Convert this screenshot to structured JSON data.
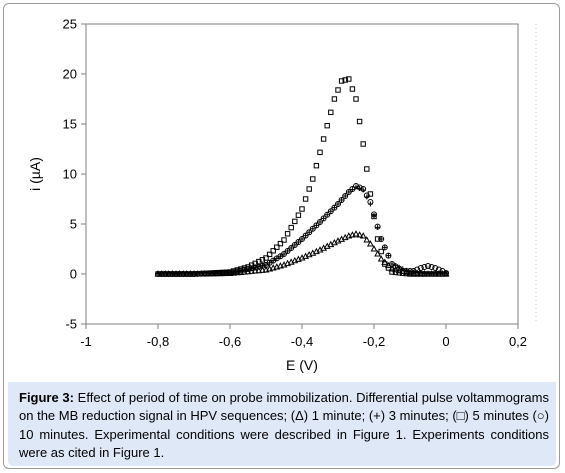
{
  "chart_data": {
    "type": "scatter",
    "title": "",
    "xlabel": "E (V)",
    "ylabel": "i (µA)",
    "xlim": [
      -1,
      0.2
    ],
    "ylim": [
      -5,
      25
    ],
    "x_ticks": [
      "-1",
      "-0,8",
      "-0,6",
      "-0,4",
      "-0,2",
      "0",
      "0,2"
    ],
    "y_ticks": [
      "25",
      "20",
      "15",
      "10",
      "5",
      "0",
      "-5"
    ],
    "grid": false,
    "marker_color": "#000000",
    "series": [
      {
        "marker": "triangle",
        "x": [
          -0.8,
          -0.7,
          -0.6,
          -0.5,
          -0.45,
          -0.4,
          -0.35,
          -0.3,
          -0.27,
          -0.25,
          -0.23,
          -0.21,
          -0.18,
          -0.15,
          -0.1,
          -0.05,
          0
        ],
        "y": [
          0,
          0,
          0.05,
          0.4,
          0.9,
          1.6,
          2.4,
          3.3,
          3.8,
          4.0,
          3.8,
          3.0,
          1.5,
          0.5,
          0.1,
          0,
          0
        ]
      },
      {
        "marker": "plus",
        "x": [
          -0.8,
          -0.7,
          -0.6,
          -0.5,
          -0.45,
          -0.4,
          -0.35,
          -0.3,
          -0.27,
          -0.25,
          -0.23,
          -0.21,
          -0.18,
          -0.15,
          -0.1,
          -0.05,
          0
        ],
        "y": [
          0,
          0,
          0.1,
          0.9,
          2.0,
          3.5,
          5.2,
          7.0,
          8.2,
          8.7,
          8.4,
          7.0,
          3.5,
          1.0,
          0.2,
          0,
          0
        ]
      },
      {
        "marker": "square",
        "x": [
          -0.8,
          -0.7,
          -0.6,
          -0.55,
          -0.5,
          -0.45,
          -0.4,
          -0.37,
          -0.34,
          -0.31,
          -0.29,
          -0.27,
          -0.25,
          -0.23,
          -0.21,
          -0.19,
          -0.17,
          -0.15,
          -0.1,
          -0.05,
          0
        ],
        "y": [
          0,
          0,
          0.2,
          0.7,
          1.6,
          3.4,
          6.5,
          9.5,
          13.5,
          17.5,
          19.3,
          19.5,
          17.5,
          13.0,
          8.0,
          3.5,
          1.0,
          0.2,
          0,
          0,
          0
        ]
      },
      {
        "marker": "circle",
        "x": [
          -0.8,
          -0.7,
          -0.6,
          -0.5,
          -0.45,
          -0.4,
          -0.35,
          -0.3,
          -0.27,
          -0.25,
          -0.23,
          -0.21,
          -0.18,
          -0.15,
          -0.12,
          -0.09,
          -0.07,
          -0.05,
          -0.03,
          -0.01,
          0
        ],
        "y": [
          0,
          0,
          0.1,
          0.9,
          2.0,
          3.5,
          5.2,
          7.0,
          8.2,
          8.8,
          8.5,
          7.2,
          3.5,
          1.0,
          0.3,
          0.3,
          0.6,
          0.8,
          0.6,
          0.3,
          0.1
        ]
      }
    ]
  },
  "caption": {
    "label": "Figure 3:",
    "text": "Effect of period of time on probe immobilization. Differential pulse voltammograms on the MB reduction signal in HPV sequences; (Δ) 1 minute; (+) 3 minutes; (□) 5 minutes (○) 10 minutes. Experimental conditions were described in Figure 1. Experiments conditions were as cited in Figure 1."
  }
}
